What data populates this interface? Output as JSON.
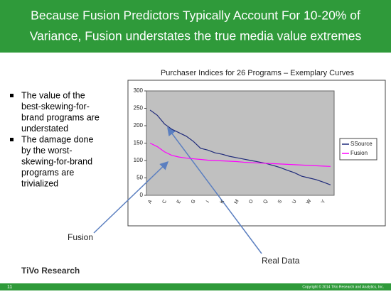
{
  "title_lines": [
    "Because Fusion Predictors Typically Account For 10-20% of",
    "Variance, Fusion understates the true media value extremes"
  ],
  "bullets": [
    [
      "The value of the",
      "best-skewing-for-",
      "brand programs are",
      "understated"
    ],
    [
      "The damage done",
      "by the worst-",
      "skewing-for-brand",
      "programs are",
      "trivialized"
    ]
  ],
  "chart_data": {
    "type": "line",
    "title": "Purchaser Indices for 26 Programs – Exemplary Curves",
    "categories": [
      "A",
      null,
      "C",
      null,
      "E",
      null,
      "G",
      null,
      "I",
      null,
      "K",
      null,
      "M",
      null,
      "O",
      null,
      "Q",
      null,
      "S",
      null,
      "U",
      null,
      "W",
      null,
      "Y",
      null
    ],
    "series": [
      {
        "name": "SSource",
        "color": "#1f2a7a",
        "values": [
          245,
          230,
          205,
          190,
          180,
          170,
          155,
          135,
          130,
          122,
          118,
          112,
          108,
          104,
          100,
          96,
          92,
          86,
          80,
          72,
          65,
          55,
          50,
          45,
          38,
          30
        ]
      },
      {
        "name": "Fusion",
        "color": "#ff00ff",
        "values": [
          150,
          140,
          125,
          115,
          110,
          107,
          105,
          103,
          101,
          100,
          99,
          98,
          97,
          95,
          94,
          93,
          92,
          91,
          90,
          89,
          88,
          87,
          86,
          85,
          84,
          83
        ]
      }
    ],
    "ylim": [
      0,
      300
    ],
    "yticks": [
      0,
      50,
      100,
      150,
      200,
      250,
      300
    ],
    "legend": "right",
    "annotations": [
      "Fusion",
      "Real Data"
    ]
  },
  "footer": {
    "logo": "TiVo Research",
    "page": "11",
    "copyright": "Copyright © 2014 TiVo Research and Analytics, Inc."
  }
}
